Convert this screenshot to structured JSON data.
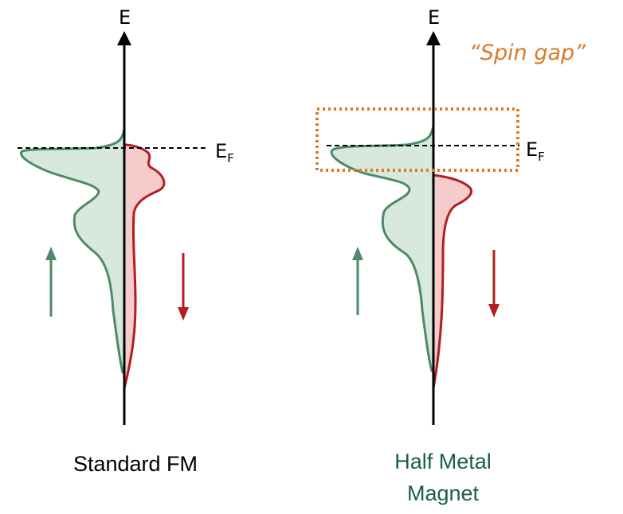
{
  "panels": [
    {
      "axis_label": "E",
      "fermi_label": "E",
      "fermi_subscript": "F",
      "caption_lines": [
        "Standard FM"
      ],
      "caption_color": "#000000"
    },
    {
      "axis_label": "E",
      "fermi_label": "E",
      "fermi_subscript": "F",
      "caption_lines": [
        "Half Metal",
        "Magnet"
      ],
      "caption_color": "#1b5e4f",
      "annotation": "“Spin gap”"
    }
  ],
  "colors": {
    "spin_up_line": "#4e8a68",
    "spin_up_fill": "#d8e8dd",
    "spin_down_line": "#b41d1d",
    "spin_down_fill": "#f4cccc",
    "spin_gap": "#d97a2b",
    "axis": "#000000"
  }
}
